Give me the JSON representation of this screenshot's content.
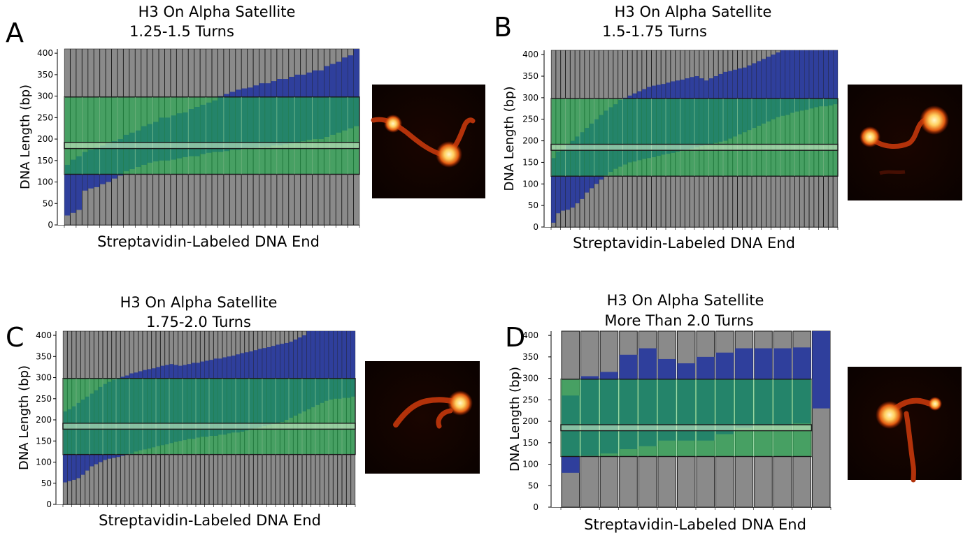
{
  "colors": {
    "gray": "#8a8a8a",
    "blue": "#2f3f9c",
    "green": "#1fae4c",
    "edge": "#1a1a1a",
    "overlap": "#1577a6"
  },
  "images": [
    {
      "panel": "A",
      "kind": "afm-micrograph"
    },
    {
      "panel": "B",
      "kind": "afm-micrograph"
    },
    {
      "panel": "C",
      "kind": "afm-micrograph"
    },
    {
      "panel": "D",
      "kind": "afm-micrograph"
    }
  ],
  "chart_data": [
    {
      "type": "bar",
      "panel": "A",
      "title_lines": [
        "H3 On Alpha Satellite",
        "1.25-1.5 Turns"
      ],
      "xlabel": "Streptavidin-Labeled DNA End",
      "ylabel": "DNA Length (bp)",
      "ylim": [
        0,
        410
      ],
      "yticks": [
        0,
        50,
        100,
        150,
        200,
        250,
        300,
        350,
        400
      ],
      "total_length_bp": 410,
      "alpha_satellite_region_bp": [
        118,
        298
      ],
      "center_band_bp": [
        178,
        192
      ],
      "nucleosome_start_bp": [
        22,
        28,
        35,
        80,
        85,
        88,
        95,
        100,
        108,
        115,
        125,
        130,
        135,
        140,
        145,
        148,
        150,
        150,
        152,
        155,
        158,
        160,
        160,
        165,
        168,
        170,
        170,
        172,
        175,
        175,
        178,
        180,
        180,
        182,
        182,
        185,
        185,
        188,
        190,
        192,
        195,
        198,
        200,
        200,
        205,
        210,
        215,
        220,
        225,
        230
      ],
      "nucleosome_end_bp": [
        140,
        152,
        160,
        170,
        175,
        180,
        185,
        190,
        195,
        200,
        210,
        215,
        220,
        230,
        235,
        240,
        250,
        250,
        255,
        260,
        262,
        270,
        275,
        280,
        285,
        290,
        300,
        305,
        310,
        315,
        318,
        320,
        325,
        330,
        330,
        335,
        340,
        340,
        345,
        350,
        350,
        355,
        360,
        360,
        370,
        375,
        380,
        390,
        395,
        410
      ]
    },
    {
      "type": "bar",
      "panel": "B",
      "title_lines": [
        "H3 On Alpha Satellite",
        "1.5-1.75 Turns"
      ],
      "xlabel": "Streptavidin-Labeled DNA End",
      "ylabel": "DNA Length (bp)",
      "ylim": [
        0,
        410
      ],
      "yticks": [
        0,
        50,
        100,
        150,
        200,
        250,
        300,
        350,
        400
      ],
      "total_length_bp": 410,
      "alpha_satellite_region_bp": [
        118,
        298
      ],
      "center_band_bp": [
        178,
        192
      ],
      "nucleosome_start_bp": [
        10,
        32,
        38,
        40,
        45,
        55,
        65,
        80,
        90,
        100,
        110,
        120,
        128,
        135,
        140,
        145,
        150,
        152,
        155,
        158,
        160,
        162,
        165,
        168,
        170,
        172,
        175,
        178,
        180,
        182,
        185,
        188,
        190,
        192,
        195,
        198,
        200,
        205,
        210,
        215,
        220,
        225,
        230,
        235,
        240,
        245,
        250,
        255,
        258,
        260,
        265,
        268,
        270,
        272,
        275,
        278,
        280,
        280,
        282,
        285
      ],
      "nucleosome_end_bp": [
        160,
        175,
        180,
        190,
        200,
        210,
        220,
        230,
        240,
        250,
        260,
        270,
        278,
        285,
        295,
        300,
        305,
        310,
        315,
        320,
        325,
        328,
        330,
        332,
        335,
        338,
        340,
        342,
        345,
        348,
        350,
        345,
        340,
        345,
        350,
        355,
        360,
        362,
        365,
        368,
        370,
        375,
        380,
        385,
        390,
        395,
        400,
        405,
        410,
        410,
        410,
        410,
        410,
        410,
        410,
        410,
        410,
        410,
        410,
        410
      ]
    },
    {
      "type": "bar",
      "panel": "C",
      "title_lines": [
        "H3 On Alpha Satellite",
        "1.75-2.0 Turns"
      ],
      "xlabel": "Streptavidin-Labeled DNA End",
      "ylabel": "DNA Length (bp)",
      "ylim": [
        0,
        410
      ],
      "yticks": [
        0,
        50,
        100,
        150,
        200,
        250,
        300,
        350,
        400
      ],
      "total_length_bp": 410,
      "alpha_satellite_region_bp": [
        118,
        298
      ],
      "center_band_bp": [
        178,
        192
      ],
      "nucleosome_start_bp": [
        52,
        55,
        58,
        62,
        70,
        80,
        90,
        95,
        100,
        105,
        108,
        110,
        112,
        115,
        118,
        120,
        125,
        128,
        130,
        132,
        135,
        138,
        140,
        142,
        145,
        148,
        150,
        152,
        155,
        155,
        158,
        160,
        160,
        162,
        162,
        165,
        165,
        168,
        170,
        170,
        172,
        175,
        178,
        180,
        182,
        185,
        188,
        190,
        192,
        195,
        200,
        205,
        210,
        215,
        220,
        225,
        230,
        235,
        240,
        245,
        248,
        250,
        250,
        252,
        252,
        255
      ],
      "nucleosome_end_bp": [
        220,
        225,
        232,
        240,
        248,
        255,
        262,
        270,
        278,
        285,
        290,
        295,
        298,
        302,
        305,
        310,
        312,
        315,
        318,
        320,
        322,
        325,
        328,
        330,
        332,
        330,
        328,
        330,
        332,
        335,
        335,
        338,
        340,
        342,
        345,
        345,
        348,
        350,
        352,
        355,
        358,
        360,
        362,
        365,
        368,
        370,
        372,
        375,
        378,
        380,
        382,
        385,
        390,
        395,
        400,
        410,
        410,
        410,
        410,
        410,
        410,
        410,
        410,
        410,
        410,
        410
      ]
    },
    {
      "type": "bar",
      "panel": "D",
      "title_lines": [
        "H3 On Alpha Satellite",
        "More Than 2.0 Turns"
      ],
      "xlabel": "Streptavidin-Labeled DNA End",
      "ylabel": "DNA Length (bp)",
      "ylim": [
        0,
        410
      ],
      "yticks": [
        0,
        50,
        100,
        150,
        200,
        250,
        300,
        350,
        400
      ],
      "total_length_bp": 410,
      "alpha_satellite_region_bp": [
        118,
        298
      ],
      "center_band_bp": [
        178,
        192
      ],
      "nucleosome_start_bp": [
        80,
        120,
        125,
        135,
        142,
        155,
        155,
        155,
        170,
        185,
        190,
        190,
        195,
        230
      ],
      "nucleosome_end_bp": [
        260,
        305,
        315,
        355,
        370,
        345,
        335,
        350,
        360,
        370,
        370,
        370,
        372,
        410
      ]
    }
  ]
}
